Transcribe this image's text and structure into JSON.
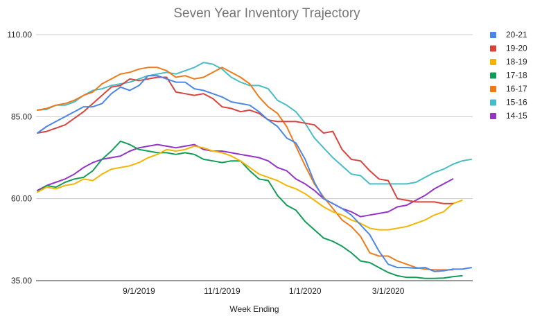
{
  "chart_data": {
    "type": "line",
    "title": "Seven Year Inventory Trajectory",
    "xlabel": "Week Ending",
    "ylabel": "",
    "ylim": [
      35,
      110
    ],
    "yticks": [
      "35.00",
      "60.00",
      "85.00",
      "110.00"
    ],
    "xticks": [
      {
        "index": 11,
        "label": "9/1/2019"
      },
      {
        "index": 20,
        "label": "11/1/2019"
      },
      {
        "index": 29,
        "label": "1/1/2020"
      },
      {
        "index": 38,
        "label": "3/1/2020"
      }
    ],
    "grid": true,
    "legend_position": "right",
    "series": [
      {
        "name": "20-21",
        "color": "#4a86e8",
        "values": [
          80,
          82,
          83.5,
          85,
          86.5,
          88,
          88,
          89,
          92,
          94,
          93,
          94.5,
          97.5,
          97.5,
          96.5,
          95.5,
          95.5,
          93.5,
          93,
          92,
          91,
          89.5,
          89,
          88.5,
          86.5,
          84,
          82,
          78.5,
          77,
          72,
          65,
          60,
          58.5,
          57,
          55,
          52,
          49,
          44,
          40,
          39,
          39,
          38.8,
          39,
          37.8,
          38,
          38.5,
          38.5,
          39
        ]
      },
      {
        "name": "19-20",
        "color": "#d9433c",
        "values": [
          80,
          80.5,
          81.5,
          82.5,
          84.5,
          86.5,
          89,
          91.5,
          94,
          94.5,
          96.5,
          96,
          96.5,
          97,
          97,
          92.5,
          92,
          91.5,
          92,
          90.5,
          88,
          87.5,
          86.5,
          87,
          86,
          84,
          83.5,
          83.5,
          83.5,
          83,
          82.5,
          80,
          80.5,
          75,
          72,
          71.5,
          68.5,
          66,
          65.5,
          60,
          59.5,
          59,
          59,
          59,
          58.5,
          58.5
        ]
      },
      {
        "name": "18-19",
        "color": "#f4b400",
        "values": [
          62,
          63.5,
          63,
          64,
          64.5,
          66,
          65.5,
          67.5,
          69,
          69.5,
          70,
          71,
          72.5,
          73.5,
          75,
          74.5,
          75,
          76,
          75.5,
          74.5,
          74,
          73,
          71.5,
          69.5,
          67.5,
          66.5,
          65.5,
          64,
          63,
          61.5,
          59.5,
          57.5,
          56,
          55,
          53.5,
          52.5,
          51,
          50.5,
          50.5,
          51,
          51.5,
          52.5,
          53.5,
          55,
          56,
          58.5,
          59.5
        ]
      },
      {
        "name": "17-18",
        "color": "#0f9d58",
        "values": [
          62,
          64,
          63.5,
          65,
          66,
          66.5,
          68.5,
          72,
          74.5,
          77.5,
          76.5,
          75,
          74.5,
          74,
          74,
          73.5,
          74,
          73.5,
          72,
          71.5,
          71,
          71.5,
          71.5,
          68.5,
          66,
          65.5,
          61,
          58,
          56.5,
          53,
          50.5,
          48,
          47,
          45.5,
          43.5,
          41,
          40.5,
          39,
          37.5,
          36.5,
          36,
          36,
          35.7,
          35.7,
          35.8,
          36.2,
          36.5
        ]
      },
      {
        "name": "16-17",
        "color": "#f07a1a",
        "values": [
          87,
          87.5,
          88.5,
          89,
          90,
          91.5,
          92.5,
          95,
          96.5,
          98,
          98.5,
          99.5,
          100,
          100,
          99,
          97,
          97.5,
          96.5,
          97,
          98.5,
          100,
          98.5,
          97,
          95,
          91,
          88,
          86,
          82,
          76,
          70,
          64.5,
          60.5,
          57,
          53.5,
          51.5,
          48.5,
          43.5,
          42.5,
          42.5,
          41,
          40,
          39,
          38.5,
          38.3,
          38.3,
          38.3
        ]
      },
      {
        "name": "15-16",
        "color": "#46bdc6",
        "values": [
          87,
          87.2,
          88.5,
          88.5,
          89.5,
          91.5,
          93,
          93.5,
          94.5,
          95,
          95.5,
          96.5,
          97.5,
          98,
          98.5,
          98,
          99,
          100,
          101.5,
          101,
          99.5,
          97,
          95.5,
          94.5,
          94.5,
          93.5,
          90,
          88.5,
          86.5,
          83,
          78.5,
          75.5,
          72.5,
          70,
          67.5,
          67,
          64.5,
          64.5,
          64.5,
          64.5,
          64.5,
          65,
          66.5,
          68,
          69,
          70.5,
          71.5,
          72
        ]
      },
      {
        "name": "14-15",
        "color": "#9334c8",
        "values": [
          62.5,
          64,
          65,
          66,
          67.5,
          69.5,
          71,
          72,
          72.5,
          73,
          74.5,
          75.5,
          76,
          76.5,
          76,
          75.5,
          76,
          76.5,
          75,
          74.5,
          74.5,
          74,
          73.5,
          73,
          72.5,
          71.5,
          69.5,
          68.5,
          66,
          64.5,
          62.5,
          60,
          58.5,
          57,
          56,
          54.5,
          55,
          55.5,
          56,
          57.5,
          58,
          59.5,
          61,
          63,
          64.5,
          66
        ]
      }
    ]
  }
}
